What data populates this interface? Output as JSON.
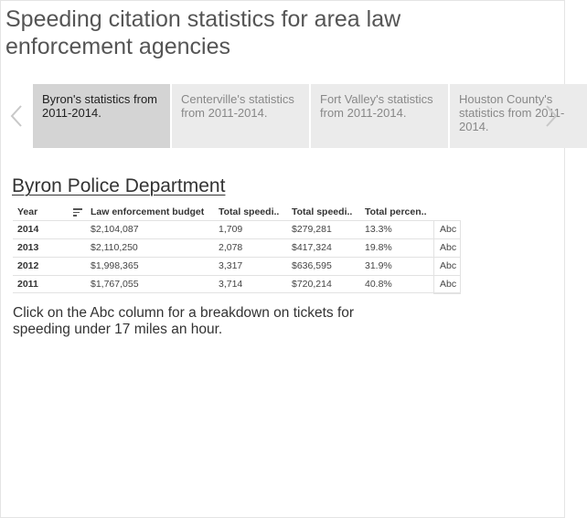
{
  "page": {
    "title": "Speeding citation statistics for area law enforcement agencies"
  },
  "carousel": {
    "prev_icon": "chevron-left-icon",
    "next_icon": "chevron-right-icon",
    "tabs": [
      {
        "label": "Byron's statistics from 2011-2014.",
        "active": true
      },
      {
        "label": "Centerville's statistics from 2011-2014.",
        "active": false
      },
      {
        "label": "Fort Valley's statistics from 2011-2014.",
        "active": false
      },
      {
        "label": "Houston County's statistics from 2011-2014.",
        "active": false
      }
    ]
  },
  "department": {
    "title": "Byron Police Department"
  },
  "table": {
    "headers": [
      "Year",
      "Law enforcement budget",
      "Total speedi..",
      "Total speedi..",
      "Total percen.."
    ],
    "sort_icon": "sort-icon",
    "rows": [
      {
        "year": "2014",
        "budget": "$2,104,087",
        "col3": "1,709",
        "col4": "$279,281",
        "col5": "13.3%",
        "abc": "Abc"
      },
      {
        "year": "2013",
        "budget": "$2,110,250",
        "col3": "2,078",
        "col4": "$417,324",
        "col5": "19.8%",
        "abc": "Abc"
      },
      {
        "year": "2012",
        "budget": "$1,998,365",
        "col3": "3,317",
        "col4": "$636,595",
        "col5": "31.9%",
        "abc": "Abc"
      },
      {
        "year": "2011",
        "budget": "$1,767,055",
        "col3": "3,714",
        "col4": "$720,214",
        "col5": "40.8%",
        "abc": "Abc"
      }
    ]
  },
  "note": {
    "text": "Click on the Abc column for a breakdown on tickets for speeding under 17 miles an hour."
  },
  "colors": {
    "active_tab": "#d4d4d4",
    "inactive_tab": "#ebebeb",
    "title_text": "#555555"
  }
}
